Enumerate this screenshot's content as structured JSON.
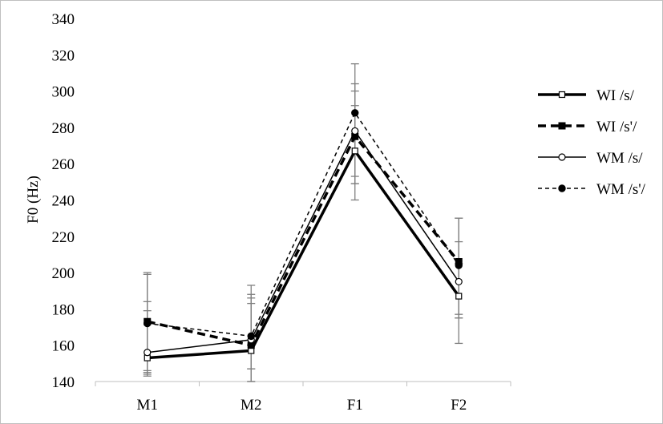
{
  "chart_data": {
    "type": "line",
    "ylabel": "F0 (Hz)",
    "xlabel": "",
    "title": "",
    "ylim": [
      140,
      340
    ],
    "yticks": [
      140,
      160,
      180,
      200,
      220,
      240,
      260,
      280,
      300,
      320,
      340
    ],
    "grid": false,
    "legend_position": "right",
    "categories": [
      "M1",
      "M2",
      "F1",
      "F2"
    ],
    "series": [
      {
        "name": "WI /s/",
        "line": "solid-thick",
        "marker": "square-open",
        "values": [
          153,
          157,
          267,
          187
        ],
        "err_low": [
          143,
          147,
          249,
          175
        ],
        "err_high": [
          184,
          183,
          292,
          205
        ]
      },
      {
        "name": "WI /s'/",
        "line": "dashed-thick",
        "marker": "square-filled",
        "values": [
          173,
          160,
          275,
          206
        ],
        "err_low": [
          146,
          140,
          249,
          177
        ],
        "err_high": [
          200,
          188,
          304,
          230
        ]
      },
      {
        "name": "WM /s/",
        "line": "solid-thin",
        "marker": "circle-open",
        "values": [
          156,
          163,
          278,
          195
        ],
        "err_low": [
          144,
          147,
          253,
          175
        ],
        "err_high": [
          179,
          186,
          300,
          217
        ]
      },
      {
        "name": "WM /s'/",
        "line": "dashed-thin",
        "marker": "circle-filled",
        "values": [
          172,
          165,
          288,
          204
        ],
        "err_low": [
          145,
          140,
          240,
          161
        ],
        "err_high": [
          199,
          193,
          315,
          230
        ]
      }
    ]
  },
  "colors": {
    "line": "#000000",
    "error_bar": "#7f7f7f",
    "axis": "#bfbfbf",
    "frame": "#bfbfbf"
  }
}
